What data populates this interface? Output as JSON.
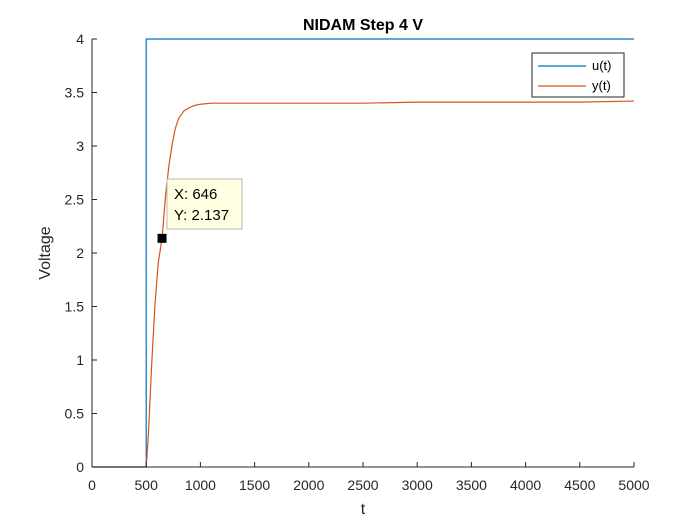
{
  "chart_data": {
    "type": "line",
    "title": "NIDAM Step 4 V",
    "xlabel": "t",
    "ylabel": "Voltage",
    "xlim": [
      0,
      5000
    ],
    "ylim": [
      0,
      4
    ],
    "xticks": [
      0,
      500,
      1000,
      1500,
      2000,
      2500,
      3000,
      3500,
      4000,
      4500,
      5000
    ],
    "yticks": [
      0,
      0.5,
      1,
      1.5,
      2,
      2.5,
      3,
      3.5,
      4
    ],
    "xtick_labels": [
      "0",
      "500",
      "1000",
      "1500",
      "2000",
      "2500",
      "3000",
      "3500",
      "4000",
      "4500",
      "5000"
    ],
    "ytick_labels": [
      "0",
      "0.5",
      "1",
      "1.5",
      "2",
      "2.5",
      "3",
      "3.5",
      "4"
    ],
    "grid": false,
    "legend": {
      "position": "top-right",
      "entries": [
        "u(t)",
        "y(t)"
      ]
    },
    "series": [
      {
        "name": "u(t)",
        "color": "#0072BD",
        "x": [
          0,
          500,
          500,
          5000
        ],
        "y": [
          0,
          0,
          4,
          4
        ]
      },
      {
        "name": "y(t)",
        "color": "#D95319",
        "x": [
          0,
          500,
          520,
          550,
          580,
          610,
          646,
          680,
          710,
          740,
          770,
          800,
          850,
          900,
          950,
          1000,
          1100,
          1200,
          1300,
          1500,
          2000,
          2500,
          3000,
          3500,
          4000,
          4500,
          5000
        ],
        "y": [
          0,
          0,
          0.3,
          0.95,
          1.5,
          1.9,
          2.137,
          2.55,
          2.82,
          3.02,
          3.17,
          3.26,
          3.33,
          3.36,
          3.38,
          3.39,
          3.4,
          3.4,
          3.4,
          3.4,
          3.4,
          3.4,
          3.41,
          3.41,
          3.41,
          3.41,
          3.42
        ]
      }
    ],
    "datatip": {
      "x": 646,
      "y": 2.137,
      "x_text": "X: 646",
      "y_text": "Y: 2.137"
    }
  }
}
